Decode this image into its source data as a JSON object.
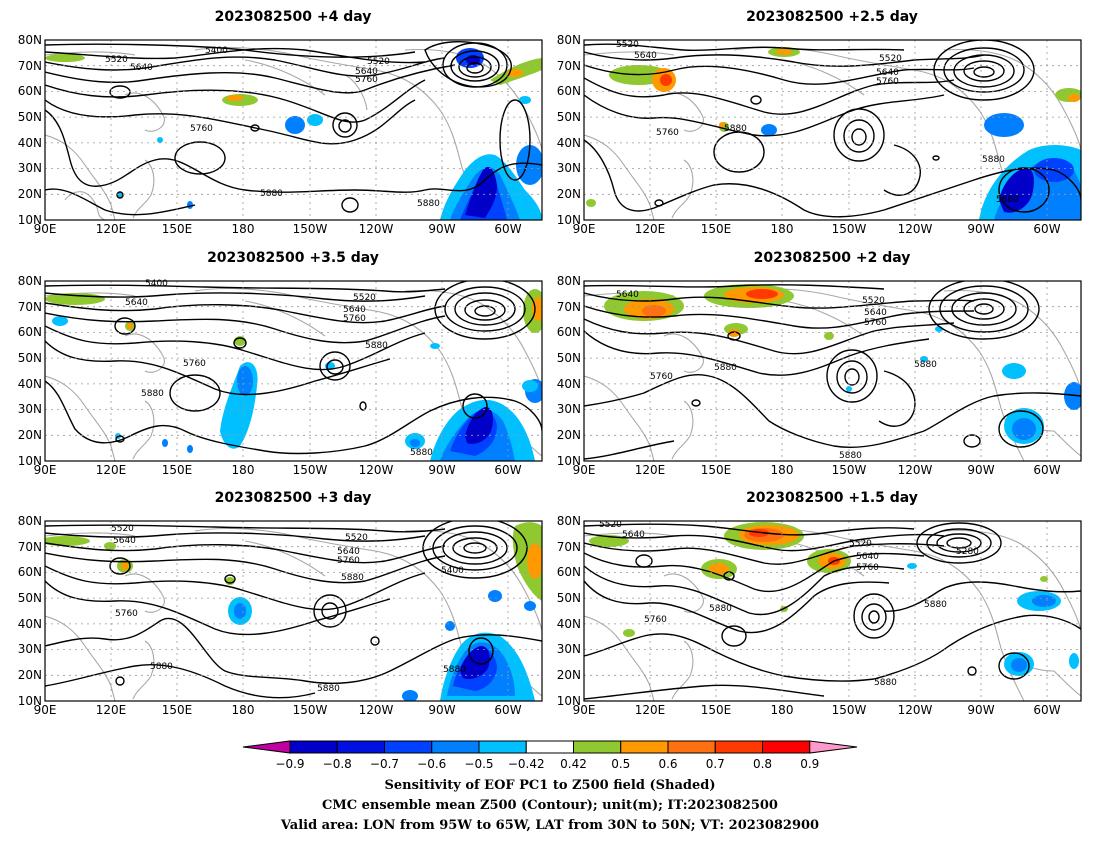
{
  "panels": [
    {
      "title": "2023082500  +4 day",
      "contour_labels": [
        "5400",
        "5520",
        "5640",
        "5520",
        "5640",
        "5760",
        "5760",
        "5880",
        "5880"
      ]
    },
    {
      "title": "2023082500  +2.5 day",
      "contour_labels": [
        "5520",
        "5640",
        "5520",
        "5640",
        "5760",
        "5760",
        "5880",
        "5880",
        "5880"
      ]
    },
    {
      "title": "2023082500  +3.5 day",
      "contour_labels": [
        "5400",
        "5640",
        "5520",
        "5640",
        "5760",
        "5760",
        "5880",
        "5880",
        "5880"
      ]
    },
    {
      "title": "2023082500  +2 day",
      "contour_labels": [
        "5640",
        "5520",
        "5640",
        "5760",
        "5760",
        "5880",
        "5880",
        "5880"
      ]
    },
    {
      "title": "2023082500  +3 day",
      "contour_labels": [
        "5520",
        "5640",
        "5520",
        "5640",
        "5760",
        "5880",
        "5400",
        "5760",
        "5880",
        "5880",
        "5880"
      ]
    },
    {
      "title": "2023082500  +1.5 day",
      "contour_labels": [
        "5520",
        "5640",
        "5520",
        "5640",
        "5760",
        "5280",
        "5880",
        "5760",
        "5880",
        "5880"
      ]
    }
  ],
  "axes": {
    "lat_ticks": [
      "10N",
      "20N",
      "30N",
      "40N",
      "50N",
      "60N",
      "70N",
      "80N"
    ],
    "lon_ticks": [
      "90E",
      "120E",
      "150E",
      "180",
      "150W",
      "120W",
      "90W",
      "60W"
    ]
  },
  "colorbar": {
    "labels": [
      "−0.9",
      "−0.8",
      "−0.7",
      "−0.6",
      "−0.5",
      "−0.42",
      "0.42",
      "0.5",
      "0.6",
      "0.7",
      "0.8",
      "0.9"
    ],
    "colors": [
      "#c000a0",
      "#0000c8",
      "#0010e0",
      "#0040ff",
      "#0080ff",
      "#00c0ff",
      "#ffffff",
      "#90c830",
      "#ff9900",
      "#ff7010",
      "#ff3a00",
      "#ff0000",
      "#ff99cc"
    ]
  },
  "footer": {
    "line1": "Sensitivity of EOF PC1 to Z500 field (Shaded)",
    "line2": "CMC ensemble mean Z500 (Contour); unit(m); IT:2023082500",
    "line3": "Valid area: LON from 95W to 65W, LAT from 30N to 50N; VT: 2023082900"
  }
}
